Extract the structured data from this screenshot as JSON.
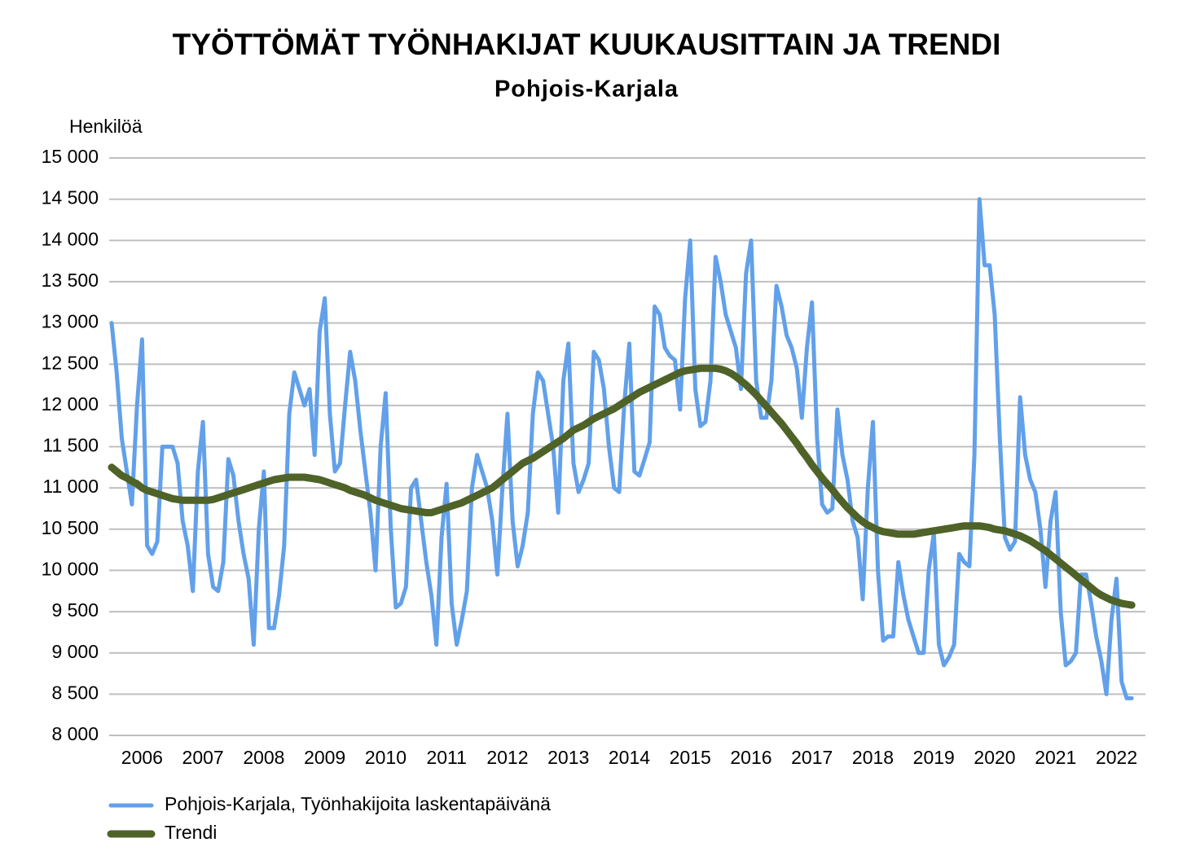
{
  "chart_data": {
    "type": "line",
    "title": "TYÖTTÖMÄT TYÖNHAKIJAT KUUKAUSITTAIN JA TRENDI",
    "subtitle": "Pohjois-Karjala",
    "y_axis_label": "Henkilöä",
    "categories": [
      null,
      null,
      null,
      null,
      null,
      null,
      "2006",
      null,
      null,
      null,
      null,
      null,
      null,
      null,
      null,
      null,
      null,
      null,
      "2007",
      null,
      null,
      null,
      null,
      null,
      null,
      null,
      null,
      null,
      null,
      null,
      "2008",
      null,
      null,
      null,
      null,
      null,
      null,
      null,
      null,
      null,
      null,
      null,
      "2009",
      null,
      null,
      null,
      null,
      null,
      null,
      null,
      null,
      null,
      null,
      null,
      "2010",
      null,
      null,
      null,
      null,
      null,
      null,
      null,
      null,
      null,
      null,
      null,
      "2011",
      null,
      null,
      null,
      null,
      null,
      null,
      null,
      null,
      null,
      null,
      null,
      "2012",
      null,
      null,
      null,
      null,
      null,
      null,
      null,
      null,
      null,
      null,
      null,
      "2013",
      null,
      null,
      null,
      null,
      null,
      null,
      null,
      null,
      null,
      null,
      null,
      "2014",
      null,
      null,
      null,
      null,
      null,
      null,
      null,
      null,
      null,
      null,
      null,
      "2015",
      null,
      null,
      null,
      null,
      null,
      null,
      null,
      null,
      null,
      null,
      null,
      "2016",
      null,
      null,
      null,
      null,
      null,
      null,
      null,
      null,
      null,
      null,
      null,
      "2017",
      null,
      null,
      null,
      null,
      null,
      null,
      null,
      null,
      null,
      null,
      null,
      "2018",
      null,
      null,
      null,
      null,
      null,
      null,
      null,
      null,
      null,
      null,
      null,
      "2019",
      null,
      null,
      null,
      null,
      null,
      null,
      null,
      null,
      null,
      null,
      null,
      "2020",
      null,
      null,
      null,
      null,
      null,
      null,
      null,
      null,
      null,
      null,
      null,
      "2021",
      null,
      null,
      null,
      null,
      null,
      null,
      null,
      null,
      null,
      null,
      null,
      "2022",
      null,
      null,
      null
    ],
    "series": [
      {
        "name": "Pohjois-Karjala, Työnhakijoita laskentapäivänä",
        "color": "#62a0ea",
        "width": 5,
        "values": [
          13000,
          12400,
          11600,
          11200,
          10800,
          12000,
          12800,
          10300,
          10200,
          10350,
          11500,
          11500,
          11500,
          11300,
          10600,
          10300,
          9750,
          11200,
          11800,
          10200,
          9800,
          9750,
          10100,
          11350,
          11150,
          10600,
          10200,
          9900,
          9100,
          10500,
          11200,
          9300,
          9300,
          9700,
          10300,
          11900,
          12400,
          12200,
          12000,
          12200,
          11400,
          12900,
          13300,
          11900,
          11200,
          11300,
          12000,
          12650,
          12300,
          11700,
          11200,
          10700,
          10000,
          11500,
          12150,
          10500,
          9550,
          9600,
          9800,
          11000,
          11100,
          10600,
          10100,
          9700,
          9100,
          10400,
          11050,
          9600,
          9100,
          9400,
          9750,
          11000,
          11400,
          11200,
          11000,
          10600,
          9950,
          11000,
          11900,
          10600,
          10050,
          10300,
          10700,
          11900,
          12400,
          12300,
          11900,
          11500,
          10700,
          12300,
          12750,
          11300,
          10950,
          11100,
          11300,
          12650,
          12550,
          12200,
          11500,
          11000,
          10950,
          12000,
          12750,
          11200,
          11150,
          11350,
          11550,
          13200,
          13100,
          12700,
          12600,
          12550,
          11950,
          13300,
          14000,
          12200,
          11750,
          11800,
          12300,
          13800,
          13500,
          13100,
          12900,
          12700,
          12200,
          13600,
          14000,
          12300,
          11850,
          11850,
          12300,
          13450,
          13200,
          12850,
          12700,
          12450,
          11850,
          12700,
          13250,
          11600,
          10800,
          10700,
          10750,
          11950,
          11400,
          11100,
          10600,
          10400,
          9650,
          11000,
          11800,
          10000,
          9150,
          9200,
          9200,
          10100,
          9700,
          9400,
          9200,
          9000,
          9000,
          10000,
          10450,
          9100,
          8850,
          8950,
          9100,
          10200,
          10100,
          10050,
          11400,
          14500,
          13700,
          13700,
          13100,
          11600,
          10400,
          10250,
          10350,
          12100,
          11400,
          11100,
          10950,
          10500,
          9800,
          10600,
          10950,
          9500,
          8850,
          8900,
          9000,
          9950,
          9950,
          9600,
          9200,
          8900,
          8500,
          9400,
          9900,
          8650,
          8450,
          8450
        ]
      },
      {
        "name": "Trendi",
        "color": "#4f6228",
        "width": 9,
        "values": [
          11250,
          11200,
          11150,
          11120,
          11080,
          11050,
          11000,
          10970,
          10950,
          10930,
          10910,
          10890,
          10870,
          10860,
          10850,
          10850,
          10850,
          10850,
          10850,
          10850,
          10860,
          10880,
          10900,
          10920,
          10940,
          10960,
          10980,
          11000,
          11020,
          11040,
          11060,
          11080,
          11100,
          11110,
          11120,
          11130,
          11130,
          11130,
          11130,
          11120,
          11110,
          11100,
          11080,
          11060,
          11040,
          11020,
          11000,
          10970,
          10950,
          10930,
          10910,
          10880,
          10850,
          10830,
          10810,
          10790,
          10770,
          10750,
          10740,
          10730,
          10720,
          10710,
          10700,
          10700,
          10720,
          10740,
          10760,
          10780,
          10800,
          10820,
          10850,
          10880,
          10910,
          10940,
          10970,
          11000,
          11050,
          11100,
          11150,
          11200,
          11250,
          11300,
          11330,
          11360,
          11400,
          11440,
          11480,
          11520,
          11560,
          11600,
          11650,
          11700,
          11730,
          11760,
          11800,
          11840,
          11870,
          11900,
          11930,
          11960,
          12000,
          12040,
          12080,
          12120,
          12160,
          12190,
          12220,
          12250,
          12280,
          12310,
          12340,
          12370,
          12400,
          12420,
          12430,
          12440,
          12450,
          12450,
          12450,
          12450,
          12440,
          12420,
          12390,
          12350,
          12300,
          12250,
          12190,
          12130,
          12060,
          11990,
          11920,
          11850,
          11780,
          11700,
          11620,
          11540,
          11450,
          11370,
          11280,
          11200,
          11120,
          11050,
          10980,
          10900,
          10830,
          10760,
          10700,
          10640,
          10590,
          10550,
          10520,
          10490,
          10470,
          10460,
          10450,
          10440,
          10440,
          10440,
          10440,
          10450,
          10460,
          10470,
          10480,
          10490,
          10500,
          10510,
          10520,
          10530,
          10540,
          10540,
          10540,
          10540,
          10530,
          10520,
          10500,
          10490,
          10480,
          10460,
          10440,
          10420,
          10390,
          10360,
          10320,
          10280,
          10240,
          10190,
          10140,
          10090,
          10040,
          9990,
          9940,
          9890,
          9840,
          9790,
          9740,
          9700,
          9670,
          9640,
          9620,
          9600,
          9590,
          9580
        ]
      }
    ],
    "ylim": [
      8000,
      15000
    ],
    "yticks": [
      {
        "value": 8000,
        "label": "8 000"
      },
      {
        "value": 8500,
        "label": "8 500"
      },
      {
        "value": 9000,
        "label": "9 000"
      },
      {
        "value": 9500,
        "label": "9 500"
      },
      {
        "value": 10000,
        "label": "10 000"
      },
      {
        "value": 10500,
        "label": "10 500"
      },
      {
        "value": 11000,
        "label": "11 000"
      },
      {
        "value": 11500,
        "label": "11 500"
      },
      {
        "value": 12000,
        "label": "12 000"
      },
      {
        "value": 12500,
        "label": "12 500"
      },
      {
        "value": 13000,
        "label": "13 000"
      },
      {
        "value": 13500,
        "label": "13 500"
      },
      {
        "value": 14000,
        "label": "14 000"
      },
      {
        "value": 14500,
        "label": "14 500"
      },
      {
        "value": 15000,
        "label": "15 000"
      }
    ],
    "grid": true,
    "legend": "bottom-left"
  }
}
